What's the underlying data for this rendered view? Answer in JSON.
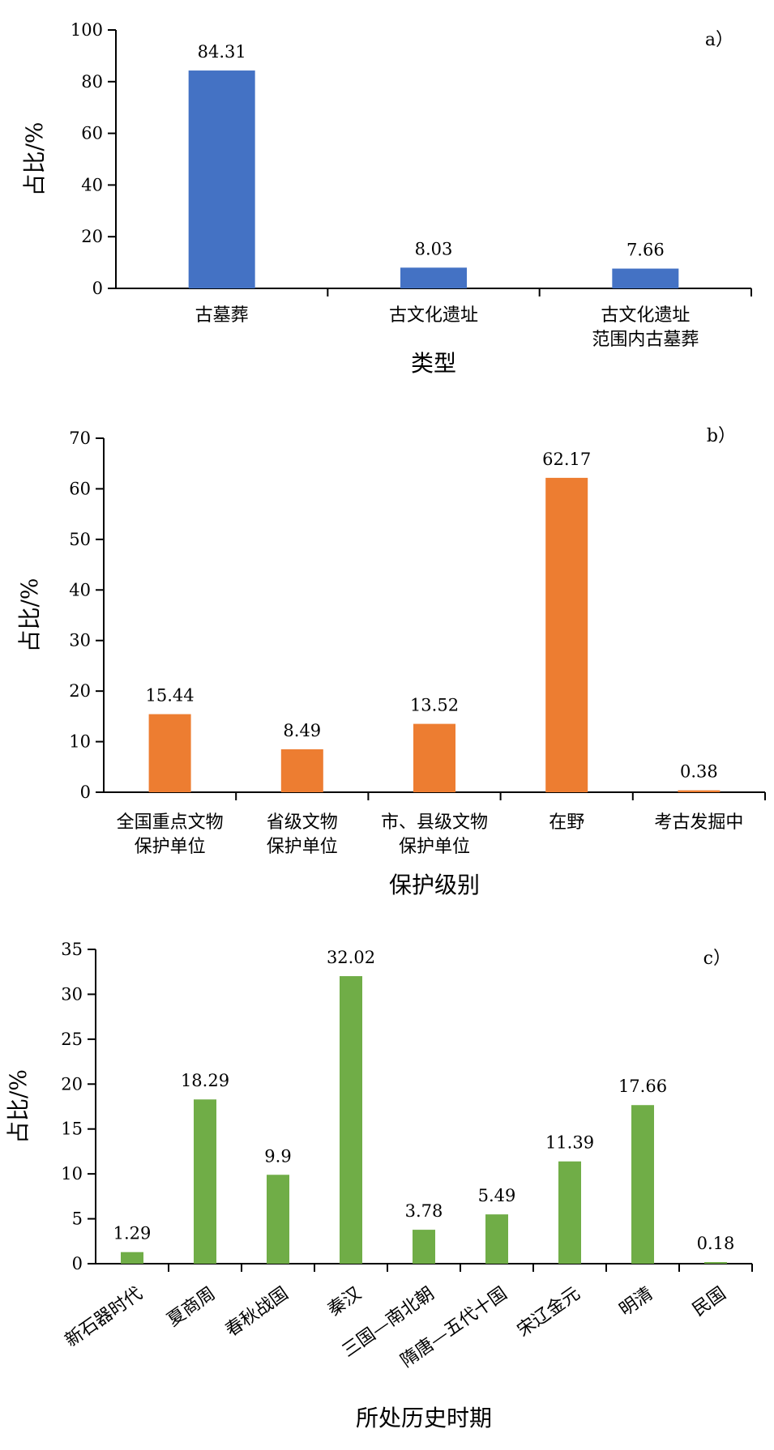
{
  "chart_data": [
    {
      "type": "bar",
      "panel_label": "a）",
      "categories": [
        "古墓葬",
        "古文化遗址",
        "古文化遗址\n范围内古墓葬"
      ],
      "values": [
        84.31,
        8.03,
        7.66
      ],
      "value_labels": [
        "84.31",
        "8.03",
        "7.66"
      ],
      "xlabel": "类型",
      "ylabel": "占比/%",
      "ylim": [
        0,
        100
      ],
      "yticks": [
        0,
        20,
        40,
        60,
        80,
        100
      ],
      "color": "#4472C4",
      "grid": false,
      "legend": "none"
    },
    {
      "type": "bar",
      "panel_label": "b）",
      "categories": [
        "全国重点文物\n保护单位",
        "省级文物\n保护单位",
        "市、县级文物\n保护单位",
        "在野",
        "考古发掘中"
      ],
      "values": [
        15.44,
        8.49,
        13.52,
        62.17,
        0.38
      ],
      "value_labels": [
        "15.44",
        "8.49",
        "13.52",
        "62.17",
        "0.38"
      ],
      "xlabel": "保护级别",
      "ylabel": "占比/%",
      "ylim": [
        0,
        70
      ],
      "yticks": [
        0,
        10,
        20,
        30,
        40,
        50,
        60,
        70
      ],
      "color": "#ED7D31",
      "grid": false,
      "legend": "none"
    },
    {
      "type": "bar",
      "panel_label": "c）",
      "categories": [
        "新石器时代",
        "夏商周",
        "春秋战国",
        "秦汉",
        "三国—南北朝",
        "隋唐—五代十国",
        "宋辽金元",
        "明清",
        "民国"
      ],
      "values": [
        1.29,
        18.29,
        9.9,
        32.02,
        3.78,
        5.49,
        11.39,
        17.66,
        0.18
      ],
      "value_labels": [
        "1.29",
        "18.29",
        "9.9",
        "32.02",
        "3.78",
        "5.49",
        "11.39",
        "17.66",
        "0.18"
      ],
      "xlabel": "所处历史时期",
      "ylabel": "占比/%",
      "ylim": [
        0,
        35
      ],
      "yticks": [
        0,
        5,
        10,
        15,
        20,
        25,
        30,
        35
      ],
      "color": "#70AD47",
      "grid": false,
      "legend": "none",
      "category_label_rotation": "diagonal"
    }
  ]
}
